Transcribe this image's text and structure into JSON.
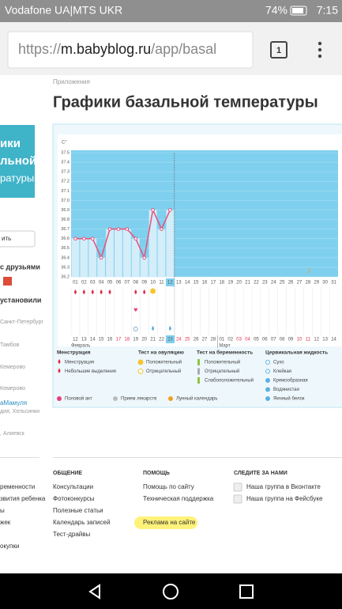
{
  "status_bar": {
    "carrier": "Vodafone UA|MTS UKR",
    "battery": "74%",
    "time": "7:15"
  },
  "browser": {
    "url_scheme": "https://",
    "url_host": "m.babyblog.ru",
    "url_path": "/app/basal",
    "tab_count": "1"
  },
  "sidebar": {
    "banner": [
      "ики",
      "льной",
      "ратуры"
    ],
    "button": "ить",
    "share": "с друзьями",
    "installed": "установили",
    "users": [
      "Санкт-Петербург",
      "Тамбов",
      "Кемерово",
      "Кемерово",
      "аМамуля",
      "дия, Хельсинки",
      ", Алиевск"
    ]
  },
  "breadcrumb": "Приложения",
  "title": "Графики базальной температуры",
  "chart_data": {
    "type": "line",
    "y_unit": "C°",
    "categories": [
      "01",
      "02",
      "03",
      "04",
      "05",
      "06",
      "07",
      "08",
      "09",
      "10",
      "11",
      "12",
      "13",
      "14",
      "15",
      "16",
      "17",
      "18",
      "19",
      "20",
      "21",
      "22",
      "23",
      "24",
      "25",
      "26",
      "27",
      "28",
      "29",
      "30",
      "31"
    ],
    "values": [
      36.6,
      36.6,
      36.6,
      36.4,
      36.7,
      36.7,
      36.7,
      36.6,
      36.4,
      36.9,
      36.7,
      36.9,
      null,
      null,
      null,
      null,
      null,
      null,
      null,
      null,
      null,
      null,
      null,
      null,
      null,
      null,
      null,
      null,
      null,
      null,
      null
    ],
    "color": "#e8507a",
    "ylim": [
      36.2,
      37.5
    ],
    "yticks": [
      36.2,
      36.3,
      36.4,
      36.5,
      36.6,
      36.7,
      36.8,
      36.9,
      {
        "value": 37,
        "label": "37.0"
      },
      37.1,
      37.2,
      37.3,
      37.4,
      37.5
    ],
    "grid": true,
    "cycle_days": [
      "12",
      "13",
      "14",
      "15",
      "16",
      "17",
      "18",
      "19",
      "20",
      "21",
      "22",
      "23",
      "24",
      "25",
      "26",
      "27",
      "28",
      "01",
      "02",
      "03",
      "04",
      "05",
      "06",
      "07",
      "08",
      "09",
      "10",
      "11",
      "12",
      "13",
      "14"
    ],
    "months": [
      "Февраль",
      "Март"
    ]
  },
  "legend": {
    "groups": [
      {
        "title": "Менструация",
        "items": [
          "Менструация",
          "Небольшие выделения"
        ]
      },
      {
        "title": "Тест на овуляцию",
        "items": [
          "Положительный",
          "Отрицательный"
        ]
      },
      {
        "title": "Тест на беременность",
        "items": [
          "Положительный",
          "Отрицательный",
          "Слабоположительный"
        ]
      },
      {
        "title": "Цервикальная жидкость",
        "items": [
          "Сухо",
          "Клейкая",
          "Кремообразная",
          "Водянистая",
          "Яичный белок"
        ]
      }
    ],
    "extras": [
      "Половой акт",
      "Прием лекарств",
      "Лунный календарь"
    ]
  },
  "footer": {
    "left": [
      "ременности",
      "звития ребенка",
      "ы",
      "жек",
      "окупки"
    ],
    "columns": [
      {
        "title": "ОБЩЕНИЕ",
        "items": [
          "Консультации",
          "Фотоконкурсы",
          "Полезные статьи",
          "Календарь записей",
          "Тест-драйвы"
        ]
      },
      {
        "title": "ПОМОЩЬ",
        "items": [
          "Помощь по сайту",
          "Техническая поддержка",
          "Реклама на сайте"
        ]
      },
      {
        "title": "СЛЕДИТЕ ЗА НАМИ",
        "items": [
          "Наша группа в Вконтакте",
          "Наша группа на Фейсбуке"
        ]
      }
    ]
  }
}
